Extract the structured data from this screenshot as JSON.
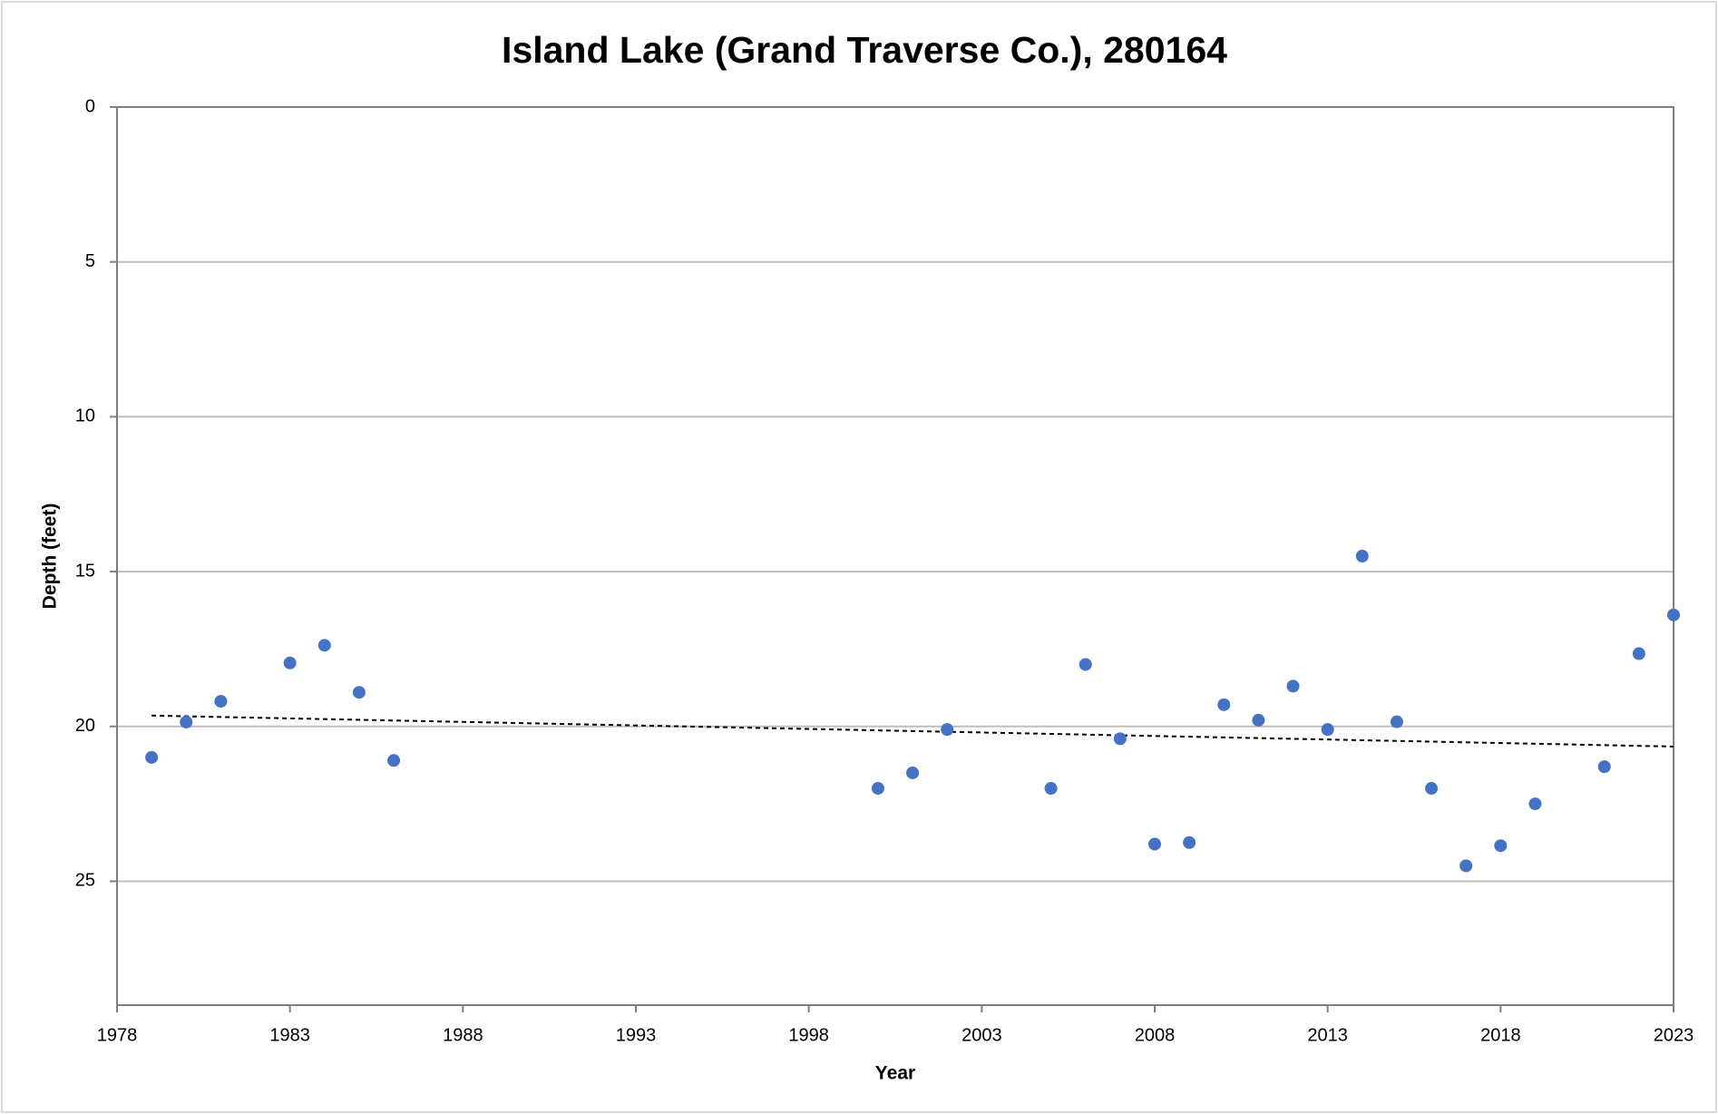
{
  "chart_data": {
    "type": "scatter",
    "title": "Island Lake (Grand Traverse Co.), 280164",
    "x_label": "Year",
    "y_label": "Depth (feet)",
    "xlim": [
      1978,
      2023
    ],
    "xticks": [
      1978,
      1983,
      1988,
      1993,
      1998,
      2003,
      2008,
      2013,
      2018,
      2023
    ],
    "ylim": [
      0,
      29
    ],
    "yticks": [
      0,
      5,
      10,
      15,
      20,
      25
    ],
    "y_inverted": true,
    "grid": true,
    "series": [
      {
        "color": "#4472c4",
        "x": [
          1979,
          1980,
          1981,
          1983,
          1984,
          1985,
          1986,
          2000,
          2001,
          2002,
          2005,
          2006,
          2007,
          2008,
          2009,
          2010,
          2011,
          2012,
          2013,
          2014,
          2015,
          2016,
          2017,
          2018,
          2019,
          2021,
          2022,
          2023
        ],
        "values": [
          21.0,
          19.86,
          19.19,
          17.95,
          17.38,
          18.9,
          21.1,
          22.0,
          21.5,
          20.1,
          22.0,
          18.0,
          20.4,
          23.8,
          23.75,
          19.3,
          19.8,
          18.7,
          20.1,
          14.5,
          19.85,
          22.0,
          24.5,
          23.85,
          22.5,
          21.3,
          17.65,
          16.4
        ]
      }
    ],
    "trendline": {
      "color": "#000000",
      "x": [
        1979,
        2023
      ],
      "values": [
        19.65,
        20.65
      ]
    }
  }
}
